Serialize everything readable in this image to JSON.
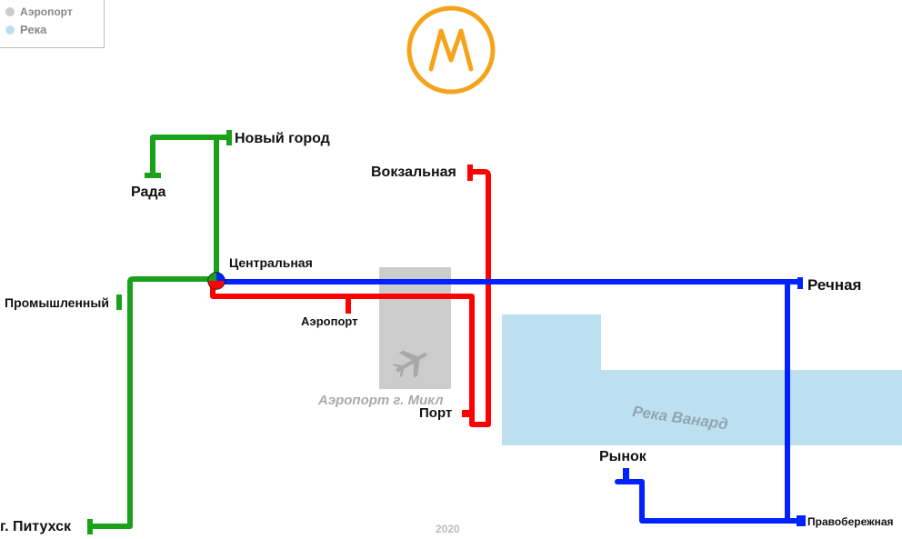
{
  "legend": {
    "items": [
      {
        "label": "Аэропорт",
        "color": "#cccccc"
      },
      {
        "label": "Река",
        "color": "#bde0f0"
      }
    ]
  },
  "logo": {
    "letter": "M",
    "color": "#f5a31a"
  },
  "lines": {
    "green": {
      "color": "#1aa11a"
    },
    "red": {
      "color": "#ff0000"
    },
    "blue": {
      "color": "#0022ff"
    }
  },
  "stations": {
    "novy_gorod": "Новый город",
    "rada": "Рада",
    "tsentralnaya": "Центральная",
    "promyshlenny": "Промышленный",
    "pitukhsk": "г. Питухск",
    "vokzalnaya": "Вокзальная",
    "aeroport": "Аэропорт",
    "port": "Порт",
    "rechnaya": "Речная",
    "rynok": "Рынок",
    "pravoberezhnaya": "Правобережная"
  },
  "areas": {
    "airport_label": "Аэропорт г. Микл",
    "river_label": "Река Ванард",
    "airport_icon": "airplane-icon"
  },
  "year": "2020"
}
